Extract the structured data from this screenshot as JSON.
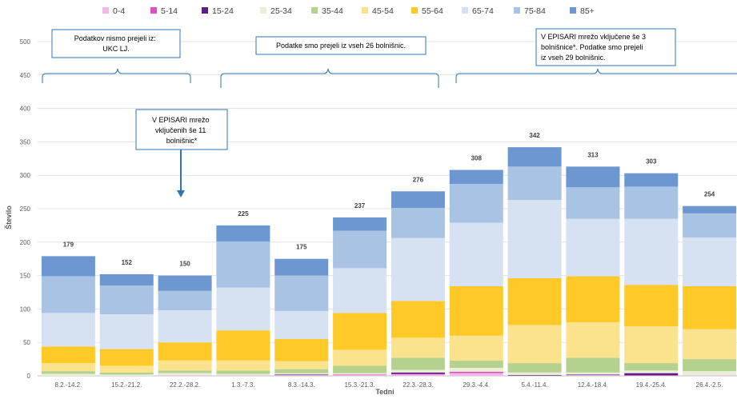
{
  "chart_data": {
    "type": "bar",
    "stacked": true,
    "title": "",
    "xlabel": "Tedni",
    "ylabel": "Število",
    "ylim": [
      0,
      500
    ],
    "yticks": [
      0,
      50,
      100,
      150,
      200,
      250,
      300,
      350,
      400,
      450,
      500
    ],
    "grid": true,
    "legend_position": "top",
    "categories": [
      "8.2.-14.2.",
      "15.2.-21.2.",
      "22.2.-28.2.",
      "1.3.-7.3.",
      "8.3.-14.3.",
      "15.3.-21.3.",
      "22.3.-28.3.",
      "29.3.-4.4.",
      "5.4.-11.4.",
      "12.4.-18.4.",
      "19.4.-25.4.",
      "26.4.-2.5."
    ],
    "totals": [
      179,
      152,
      150,
      225,
      175,
      237,
      276,
      308,
      342,
      313,
      303,
      254
    ],
    "series": [
      {
        "name": "0-4",
        "color": "#F2B8E8",
        "values": [
          0,
          0,
          1,
          1,
          1,
          1,
          2,
          4,
          0,
          1,
          0,
          1
        ]
      },
      {
        "name": "5-14",
        "color": "#E04FC0",
        "values": [
          0,
          0,
          0,
          0,
          0,
          1,
          1,
          2,
          0,
          0,
          1,
          0
        ]
      },
      {
        "name": "15-24",
        "color": "#5A1E8C",
        "values": [
          0,
          0,
          0,
          0,
          1,
          0,
          2,
          0,
          1,
          1,
          3,
          0
        ]
      },
      {
        "name": "25-34",
        "color": "#E8EFD6",
        "values": [
          3,
          2,
          3,
          2,
          2,
          2,
          4,
          6,
          4,
          3,
          4,
          6
        ]
      },
      {
        "name": "35-44",
        "color": "#B5D18E",
        "values": [
          4,
          3,
          4,
          5,
          6,
          11,
          18,
          11,
          14,
          22,
          11,
          18
        ]
      },
      {
        "name": "45-54",
        "color": "#FBE28C",
        "values": [
          12,
          10,
          15,
          15,
          12,
          24,
          30,
          37,
          57,
          53,
          55,
          45
        ]
      },
      {
        "name": "55-64",
        "color": "#FFC928",
        "values": [
          25,
          25,
          27,
          45,
          33,
          55,
          55,
          74,
          70,
          69,
          62,
          64
        ]
      },
      {
        "name": "65-74",
        "color": "#D6E1F1",
        "values": [
          50,
          52,
          48,
          64,
          42,
          67,
          94,
          95,
          117,
          86,
          99,
          73
        ]
      },
      {
        "name": "75-84",
        "color": "#A9C3E4",
        "values": [
          55,
          43,
          29,
          69,
          53,
          56,
          45,
          58,
          50,
          47,
          48,
          36
        ]
      },
      {
        "name": "85+",
        "color": "#6C97D1",
        "values": [
          30,
          17,
          23,
          24,
          25,
          20,
          25,
          21,
          29,
          31,
          20,
          11
        ]
      }
    ],
    "annotations": [
      {
        "id": "note1",
        "text": "Podatkov nismo prejeli iz: UKC LJ."
      },
      {
        "id": "note2",
        "text": "Podatke smo prejeli iz vseh 26 bolnišnic."
      },
      {
        "id": "note3",
        "text": "V EPISARI mrežo vključene še 3 bolnišnice*. Podatke smo prejeli iz vseh 29 bolnišnic."
      },
      {
        "id": "note4",
        "text": "V EPISARI mrežo vključenih še 11 bolnišnic*"
      }
    ]
  }
}
